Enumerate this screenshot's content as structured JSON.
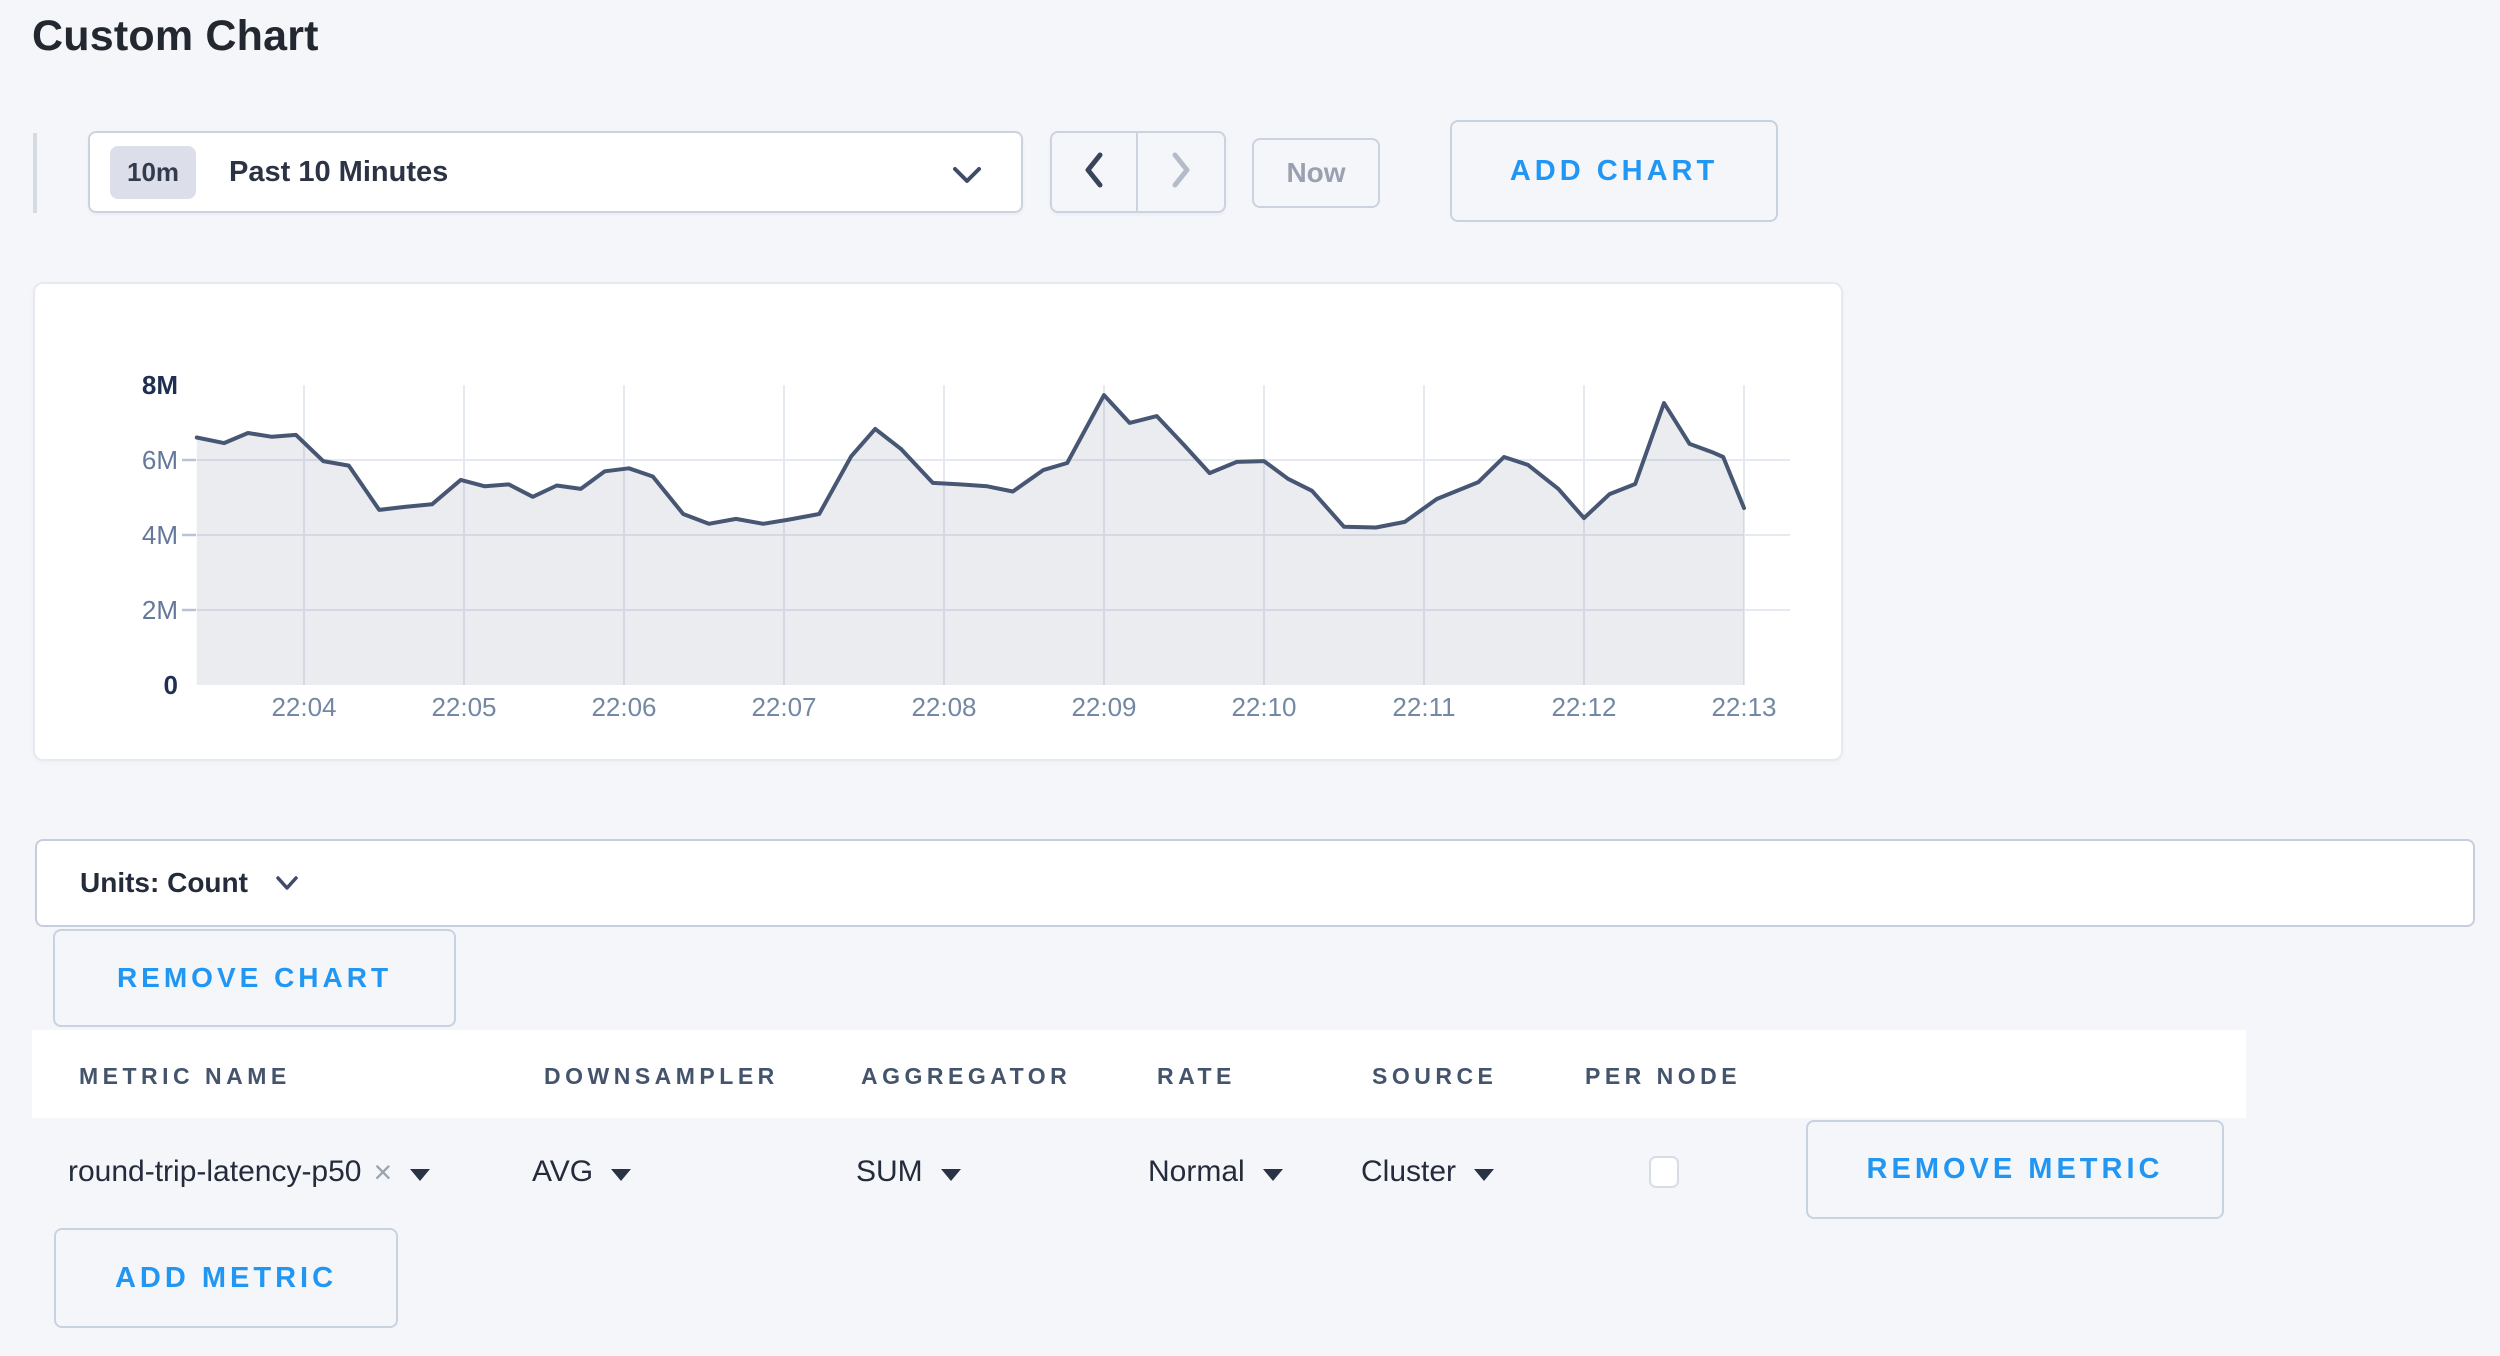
{
  "page_title": "Custom Chart",
  "toolbar": {
    "time_range_badge": "10m",
    "time_range_label": "Past 10 Minutes",
    "now_label": "Now",
    "add_chart_label": "ADD CHART"
  },
  "units_bar": {
    "label": "Units: Count"
  },
  "buttons": {
    "remove_chart_label": "REMOVE CHART",
    "remove_metric_label": "REMOVE METRIC",
    "add_metric_label": "ADD METRIC"
  },
  "metrics_table": {
    "columns": [
      "METRIC NAME",
      "DOWNSAMPLER",
      "AGGREGATOR",
      "RATE",
      "SOURCE",
      "PER NODE"
    ],
    "rows": [
      {
        "metric_name": "round-trip-latency-p50",
        "remove_tag_glyph": "×",
        "downsampler": "AVG",
        "aggregator": "SUM",
        "rate": "Normal",
        "source": "Cluster",
        "per_node_checked": false
      }
    ]
  },
  "chart_data": {
    "type": "area",
    "title": "",
    "xlabel": "",
    "ylabel": "",
    "unit": "count",
    "legend": "off",
    "grid": "on",
    "ylim_millions": [
      0,
      8
    ],
    "x_ticks": [
      "22:04",
      "22:05",
      "22:06",
      "22:07",
      "22:08",
      "22:09",
      "22:10",
      "22:11",
      "22:12",
      "22:13"
    ],
    "x_tick_minutes": [
      4,
      5,
      6,
      7,
      8,
      9,
      10,
      11,
      12,
      13
    ],
    "y_ticks": [
      {
        "label": "0",
        "value_m": 0,
        "major": true
      },
      {
        "label": "2M",
        "value_m": 2,
        "major": false
      },
      {
        "label": "4M",
        "value_m": 4,
        "major": false
      },
      {
        "label": "6M",
        "value_m": 6,
        "major": false
      },
      {
        "label": "8M",
        "value_m": 8,
        "major": true
      }
    ],
    "series": [
      {
        "name": "round-trip-latency-p50",
        "values_in": "millions",
        "points": [
          [
            3.33,
            6.6
          ],
          [
            3.5,
            6.45
          ],
          [
            3.65,
            6.72
          ],
          [
            3.8,
            6.62
          ],
          [
            3.95,
            6.67
          ],
          [
            4.12,
            5.97
          ],
          [
            4.28,
            5.85
          ],
          [
            4.47,
            4.67
          ],
          [
            4.63,
            4.75
          ],
          [
            4.8,
            4.82
          ],
          [
            4.98,
            5.47
          ],
          [
            5.13,
            5.3
          ],
          [
            5.28,
            5.35
          ],
          [
            5.43,
            5.02
          ],
          [
            5.58,
            5.32
          ],
          [
            5.73,
            5.23
          ],
          [
            5.88,
            5.7
          ],
          [
            6.03,
            5.78
          ],
          [
            6.18,
            5.56
          ],
          [
            6.37,
            4.56
          ],
          [
            6.53,
            4.3
          ],
          [
            6.7,
            4.43
          ],
          [
            6.87,
            4.3
          ],
          [
            7.03,
            4.41
          ],
          [
            7.22,
            4.56
          ],
          [
            7.42,
            6.1
          ],
          [
            7.57,
            6.83
          ],
          [
            7.73,
            6.3
          ],
          [
            7.93,
            5.39
          ],
          [
            8.1,
            5.35
          ],
          [
            8.27,
            5.3
          ],
          [
            8.43,
            5.16
          ],
          [
            8.62,
            5.73
          ],
          [
            8.77,
            5.92
          ],
          [
            9.0,
            7.73
          ],
          [
            9.16,
            6.99
          ],
          [
            9.33,
            7.17
          ],
          [
            9.5,
            6.4
          ],
          [
            9.66,
            5.65
          ],
          [
            9.83,
            5.95
          ],
          [
            10.0,
            5.97
          ],
          [
            10.15,
            5.5
          ],
          [
            10.3,
            5.18
          ],
          [
            10.5,
            4.22
          ],
          [
            10.7,
            4.2
          ],
          [
            10.88,
            4.35
          ],
          [
            11.08,
            4.96
          ],
          [
            11.34,
            5.41
          ],
          [
            11.5,
            6.08
          ],
          [
            11.65,
            5.87
          ],
          [
            11.84,
            5.23
          ],
          [
            12.0,
            4.45
          ],
          [
            12.16,
            5.09
          ],
          [
            12.32,
            5.36
          ],
          [
            12.5,
            7.52
          ],
          [
            12.66,
            6.43
          ],
          [
            12.8,
            6.21
          ],
          [
            12.87,
            6.08
          ],
          [
            13.0,
            4.72
          ]
        ]
      }
    ],
    "colors": {
      "line": "#475672",
      "fill": "rgba(71,86,114,0.11)",
      "grid": "#e5e9f0",
      "tick_dash": "#b9c3d6",
      "axis_major": "#1e2f52",
      "axis_minor": "#64789b",
      "axis_x": "#7488a3"
    }
  },
  "colors": {
    "accent_blue": "#2196f3",
    "page_background": "#f4f6fa",
    "card_background": "#ffffff"
  }
}
